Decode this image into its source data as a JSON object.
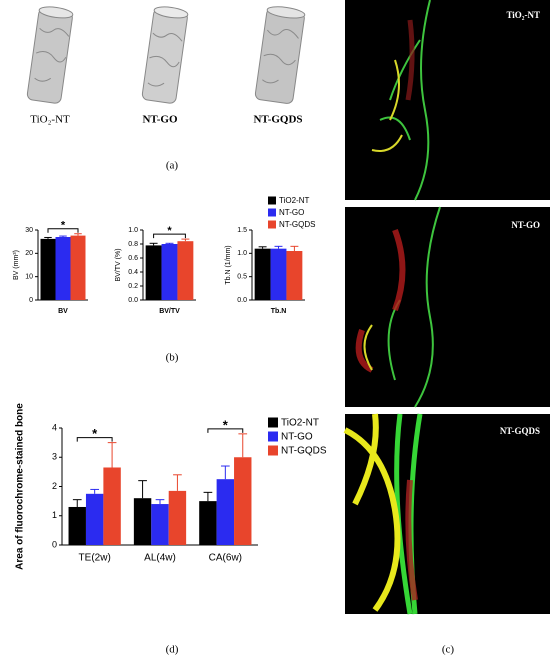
{
  "panel_a": {
    "labels": [
      "TiO₂-NT",
      "NT-GO",
      "NT-GQDS"
    ],
    "caption": "(a)"
  },
  "panel_b": {
    "caption": "(b)"
  },
  "panel_c": {
    "labels": [
      "TiO₂-NT",
      "NT-GO",
      "NT-GQDS"
    ],
    "caption": "(c)"
  },
  "panel_d": {
    "caption": "(d)"
  },
  "chart_data": [
    {
      "type": "bar",
      "ylabel": "BV (mm³)",
      "categories": [
        "BV"
      ],
      "series": [
        {
          "name": "TiO2-NT",
          "color": "#000000",
          "values": [
            26.2
          ],
          "errors": [
            0.6
          ]
        },
        {
          "name": "NT-GO",
          "color": "#2b2bf0",
          "values": [
            27.0
          ],
          "errors": [
            0.4
          ]
        },
        {
          "name": "NT-GQDS",
          "color": "#e8452c",
          "values": [
            27.6
          ],
          "errors": [
            0.8
          ]
        }
      ],
      "ylim": [
        0,
        30
      ],
      "yticks": [
        0,
        10,
        20,
        30
      ],
      "annotations": [
        "*"
      ]
    },
    {
      "type": "bar",
      "ylabel": "BV/TV (%)",
      "categories": [
        "BV/TV"
      ],
      "series": [
        {
          "color": "#000000",
          "values": [
            0.78
          ],
          "errors": [
            0.03
          ]
        },
        {
          "color": "#2b2bf0",
          "values": [
            0.8
          ],
          "errors": [
            0.01
          ]
        },
        {
          "color": "#e8452c",
          "values": [
            0.84
          ],
          "errors": [
            0.03
          ]
        }
      ],
      "ylim": [
        0,
        1.0
      ],
      "yticks": [
        {
          "value": 0,
          "label": "0.0"
        },
        {
          "value": 0.2,
          "label": "0.2"
        },
        {
          "value": 0.4,
          "label": "0.4"
        },
        {
          "value": 0.6,
          "label": "0.6"
        },
        {
          "value": 0.8,
          "label": "0.8"
        },
        {
          "value": 1.0,
          "label": "1.0"
        }
      ],
      "annotations": [
        "*"
      ]
    },
    {
      "type": "bar",
      "ylabel": "Tb.N (1/mm)",
      "categories": [
        "Tb.N"
      ],
      "series": [
        {
          "color": "#000000",
          "values": [
            1.1
          ],
          "errors": [
            0.04
          ]
        },
        {
          "color": "#2b2bf0",
          "values": [
            1.1
          ],
          "errors": [
            0.05
          ]
        },
        {
          "color": "#e8452c",
          "values": [
            1.05
          ],
          "errors": [
            0.1
          ]
        }
      ],
      "ylim": [
        0,
        1.5
      ],
      "yticks": [
        {
          "value": 0,
          "label": "0.0"
        },
        {
          "value": 0.5,
          "label": "0.5"
        },
        {
          "value": 1.0,
          "label": "1.0"
        },
        {
          "value": 1.5,
          "label": "1.5"
        }
      ]
    },
    {
      "type": "bar",
      "ylabel": "Area of fluorochrome-stained bone",
      "categories": [
        "TE(2w)",
        "AL(4w)",
        "CA(6w)"
      ],
      "series": [
        {
          "name": "TiO2-NT",
          "color": "#000000",
          "values": [
            1.3,
            1.6,
            1.5
          ],
          "errors": [
            0.25,
            0.6,
            0.3
          ]
        },
        {
          "name": "NT-GO",
          "color": "#2b2bf0",
          "values": [
            1.75,
            1.4,
            2.25
          ],
          "errors": [
            0.15,
            0.15,
            0.45
          ]
        },
        {
          "name": "NT-GQDS",
          "color": "#e8452c",
          "values": [
            2.65,
            1.85,
            3.0
          ],
          "errors": [
            0.85,
            0.55,
            0.8
          ]
        }
      ],
      "ylim": [
        0,
        4
      ],
      "yticks": [
        0,
        1,
        2,
        3,
        4
      ],
      "annotations": [
        "*",
        null,
        "*"
      ]
    }
  ]
}
